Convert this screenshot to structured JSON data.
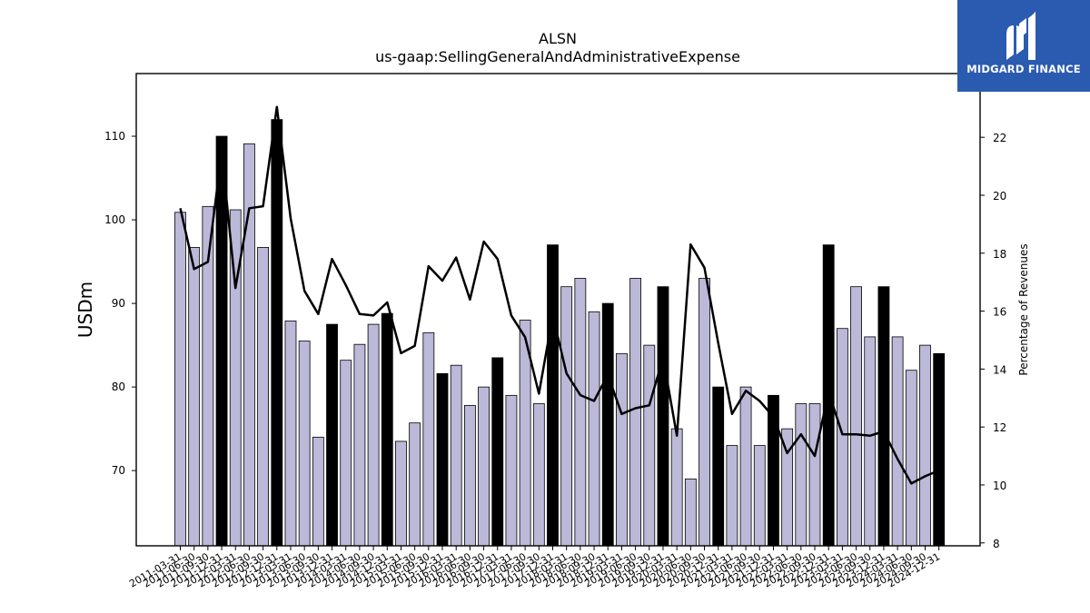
{
  "logo": {
    "text": "MIDGARD FINANCE",
    "icon": "midgard-m-logo-icon"
  },
  "chart_data": {
    "type": "bar",
    "title": "ALSN",
    "subtitle": "us-gaap:SellingGeneralAndAdministrativeExpense",
    "ylabel": "USDm",
    "y2label": "Percentage of Revenues",
    "ylim": [
      61,
      117.5
    ],
    "y2lim": [
      7.9,
      24.2
    ],
    "yticks": [
      70,
      80,
      90,
      100,
      110
    ],
    "y2ticks": [
      8,
      10,
      12,
      14,
      16,
      18,
      20,
      22
    ],
    "colors": {
      "quarter_bar": "#bcb8d8",
      "annual_bar": "#000000",
      "line": "#000000"
    },
    "categories": [
      "2011-03-31",
      "2011-06-30",
      "2011-09-30",
      "2011-12-31",
      "2012-03-31",
      "2012-06-30",
      "2012-09-30",
      "2012-12-31",
      "2013-03-31",
      "2013-06-30",
      "2013-09-30",
      "2013-12-31",
      "2014-03-31",
      "2014-06-30",
      "2014-09-30",
      "2014-12-31",
      "2015-03-31",
      "2015-06-30",
      "2015-09-30",
      "2015-12-31",
      "2016-03-31",
      "2016-06-30",
      "2016-09-30",
      "2016-12-31",
      "2017-03-31",
      "2017-06-30",
      "2017-09-30",
      "2017-12-31",
      "2018-03-31",
      "2018-06-30",
      "2018-09-30",
      "2018-12-31",
      "2019-03-31",
      "2019-06-30",
      "2019-09-30",
      "2019-12-31",
      "2020-03-31",
      "2020-06-30",
      "2020-09-30",
      "2020-12-31",
      "2021-03-31",
      "2021-06-30",
      "2021-09-30",
      "2021-12-31",
      "2022-03-31",
      "2022-06-30",
      "2022-09-30",
      "2022-12-31",
      "2023-03-31",
      "2023-06-30",
      "2023-09-30",
      "2023-12-31",
      "2024-03-31",
      "2024-06-30",
      "2024-09-30",
      "2024-12-31"
    ],
    "series": [
      {
        "type": "bar",
        "values": [
          100.9,
          96.7,
          101.6,
          110.0,
          101.2,
          109.1,
          96.7,
          112.0,
          87.9,
          85.5,
          74.0,
          87.5,
          83.2,
          85.1,
          87.5,
          88.8,
          73.5,
          75.7,
          86.5,
          81.6,
          82.6,
          77.8,
          80.0,
          83.5,
          79.0,
          88.0,
          78.0,
          97.0,
          92.0,
          93.0,
          89.0,
          90.0,
          84.0,
          93.0,
          85.0,
          92.0,
          75.0,
          69.0,
          93.0,
          80.0,
          73.0,
          80.0,
          73.0,
          79.0,
          75.0,
          78.0,
          78.0,
          97.0,
          87.0,
          92.0,
          86.0,
          92.0,
          86.0,
          82.0,
          85.0,
          84.0
        ],
        "annual": [
          false,
          false,
          false,
          true,
          false,
          false,
          false,
          true,
          false,
          false,
          false,
          true,
          false,
          false,
          false,
          true,
          false,
          false,
          false,
          true,
          false,
          false,
          false,
          true,
          false,
          false,
          false,
          true,
          false,
          false,
          false,
          true,
          false,
          false,
          false,
          true,
          false,
          false,
          false,
          true,
          false,
          false,
          false,
          true,
          false,
          false,
          false,
          true,
          false,
          false,
          false,
          true,
          false,
          false,
          false,
          true
        ]
      },
      {
        "type": "line",
        "axis": "y2",
        "values": [
          19.55,
          17.45,
          17.7,
          21.5,
          16.8,
          19.55,
          19.62,
          23.05,
          19.2,
          16.7,
          15.9,
          17.8,
          16.9,
          15.9,
          15.85,
          16.3,
          14.55,
          14.8,
          17.55,
          17.05,
          17.85,
          16.4,
          18.4,
          17.8,
          15.85,
          15.1,
          13.15,
          15.85,
          13.85,
          13.1,
          12.9,
          13.8,
          12.45,
          12.65,
          12.75,
          14.4,
          11.7,
          18.3,
          17.5,
          14.9,
          12.45,
          13.25,
          12.9,
          12.35,
          11.1,
          11.75,
          11.0,
          13.2,
          11.75,
          11.75,
          11.7,
          11.85,
          10.9,
          10.05,
          10.3,
          10.5
        ]
      }
    ]
  }
}
